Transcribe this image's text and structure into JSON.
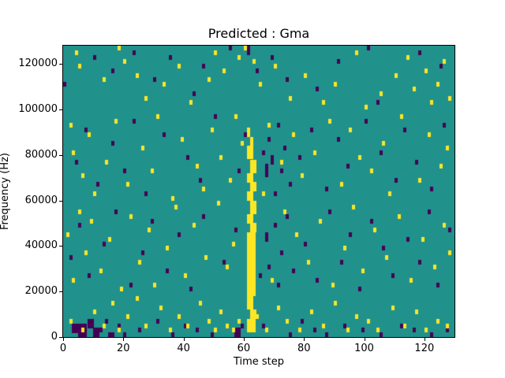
{
  "figure": {
    "title": "Predicted : Gma",
    "xlabel": "Time step",
    "ylabel": "Frequency (Hz)"
  },
  "chart_data": {
    "type": "heatmap",
    "title": "Predicted : Gma",
    "xlabel": "Time step",
    "ylabel": "Frequency (Hz)",
    "xlim": [
      0,
      130
    ],
    "ylim": [
      0,
      128000
    ],
    "x_ticks": [
      0,
      20,
      40,
      60,
      80,
      100,
      120
    ],
    "x_tick_labels": [
      "0",
      "20",
      "40",
      "60",
      "80",
      "100",
      "120"
    ],
    "y_ticks": [
      0,
      20000,
      40000,
      60000,
      80000,
      100000,
      120000
    ],
    "y_tick_labels": [
      "0",
      "20000",
      "40000",
      "60000",
      "80000",
      "100000",
      "120000"
    ],
    "grid": false,
    "legend": "none",
    "cell_unit": {
      "time": 1,
      "freq_hz": 2000
    },
    "colors": {
      "background_mid": "#21918c",
      "low": "#440154",
      "high": "#fde725"
    },
    "cells_format": "[time_step, freq_bin_of_2000Hz, width_steps_optional, height_bins_optional]",
    "yellow_cells": [
      [
        61,
        1,
        3,
        3
      ],
      [
        62,
        4,
        2,
        2
      ],
      [
        61,
        6,
        2,
        3
      ],
      [
        61,
        9,
        3,
        4
      ],
      [
        61,
        13,
        3,
        6
      ],
      [
        61,
        19,
        3,
        4
      ],
      [
        62,
        23,
        2,
        2
      ],
      [
        61,
        25,
        2,
        2
      ],
      [
        62,
        27,
        2,
        3
      ],
      [
        61,
        30,
        2,
        2
      ],
      [
        62,
        32,
        2,
        2
      ],
      [
        61,
        34,
        2,
        2
      ],
      [
        62,
        36,
        2,
        3
      ],
      [
        61,
        39,
        2,
        3
      ],
      [
        62,
        42,
        1,
        2
      ],
      [
        61,
        44,
        1,
        2
      ],
      [
        4,
        62
      ],
      [
        5,
        59
      ],
      [
        13,
        56
      ],
      [
        18,
        63
      ],
      [
        20,
        60
      ],
      [
        24,
        57
      ],
      [
        27,
        52
      ],
      [
        33,
        55
      ],
      [
        38,
        59
      ],
      [
        42,
        51
      ],
      [
        48,
        56
      ],
      [
        50,
        62
      ],
      [
        53,
        58
      ],
      [
        58,
        61
      ],
      [
        60,
        63
      ],
      [
        63,
        60
      ],
      [
        65,
        55
      ],
      [
        70,
        59
      ],
      [
        75,
        52
      ],
      [
        80,
        57
      ],
      [
        86,
        51
      ],
      [
        90,
        55
      ],
      [
        97,
        62
      ],
      [
        100,
        50
      ],
      [
        105,
        53
      ],
      [
        110,
        57
      ],
      [
        114,
        61
      ],
      [
        116,
        54
      ],
      [
        120,
        58
      ],
      [
        122,
        51
      ],
      [
        124,
        55
      ],
      [
        126,
        60
      ],
      [
        128,
        52
      ],
      [
        2,
        46
      ],
      [
        3,
        40
      ],
      [
        6,
        35
      ],
      [
        8,
        44
      ],
      [
        10,
        31
      ],
      [
        14,
        38
      ],
      [
        17,
        47
      ],
      [
        21,
        33
      ],
      [
        26,
        41
      ],
      [
        29,
        36
      ],
      [
        31,
        48
      ],
      [
        36,
        30
      ],
      [
        39,
        43
      ],
      [
        44,
        37
      ],
      [
        46,
        32
      ],
      [
        49,
        45
      ],
      [
        52,
        39
      ],
      [
        55,
        34
      ],
      [
        57,
        48
      ],
      [
        59,
        42
      ],
      [
        66,
        31
      ],
      [
        68,
        46
      ],
      [
        72,
        38
      ],
      [
        76,
        44
      ],
      [
        79,
        35
      ],
      [
        83,
        40
      ],
      [
        88,
        47
      ],
      [
        92,
        33
      ],
      [
        95,
        45
      ],
      [
        98,
        39
      ],
      [
        102,
        36
      ],
      [
        106,
        42
      ],
      [
        108,
        31
      ],
      [
        112,
        48
      ],
      [
        118,
        34
      ],
      [
        121,
        44
      ],
      [
        125,
        37
      ],
      [
        127,
        41
      ],
      [
        1,
        22
      ],
      [
        3,
        12
      ],
      [
        5,
        27
      ],
      [
        7,
        18
      ],
      [
        9,
        25
      ],
      [
        12,
        14
      ],
      [
        15,
        21
      ],
      [
        19,
        10
      ],
      [
        22,
        26
      ],
      [
        25,
        16
      ],
      [
        28,
        23
      ],
      [
        30,
        11
      ],
      [
        34,
        19
      ],
      [
        37,
        28
      ],
      [
        40,
        13
      ],
      [
        43,
        24
      ],
      [
        47,
        17
      ],
      [
        51,
        29
      ],
      [
        54,
        15
      ],
      [
        56,
        20
      ],
      [
        69,
        12
      ],
      [
        73,
        27
      ],
      [
        77,
        22
      ],
      [
        81,
        16
      ],
      [
        85,
        25
      ],
      [
        89,
        11
      ],
      [
        93,
        19
      ],
      [
        96,
        28
      ],
      [
        99,
        14
      ],
      [
        103,
        23
      ],
      [
        107,
        17
      ],
      [
        111,
        26
      ],
      [
        115,
        12
      ],
      [
        119,
        21
      ],
      [
        123,
        15
      ],
      [
        126,
        24
      ],
      [
        128,
        18
      ],
      [
        2,
        3
      ],
      [
        6,
        1
      ],
      [
        10,
        5
      ],
      [
        13,
        2
      ],
      [
        16,
        7
      ],
      [
        18,
        1
      ],
      [
        21,
        4
      ],
      [
        24,
        8
      ],
      [
        27,
        2
      ],
      [
        32,
        6
      ],
      [
        35,
        1
      ],
      [
        38,
        4
      ],
      [
        41,
        2
      ],
      [
        45,
        7
      ],
      [
        48,
        3
      ],
      [
        50,
        1
      ],
      [
        52,
        5
      ],
      [
        54,
        2
      ],
      [
        56,
        1
      ],
      [
        58,
        3
      ],
      [
        64,
        4
      ],
      [
        67,
        1
      ],
      [
        71,
        6
      ],
      [
        74,
        3
      ],
      [
        78,
        1
      ],
      [
        82,
        5
      ],
      [
        86,
        2
      ],
      [
        90,
        7
      ],
      [
        94,
        1
      ],
      [
        97,
        4
      ],
      [
        101,
        3
      ],
      [
        104,
        1
      ],
      [
        109,
        6
      ],
      [
        113,
        2
      ],
      [
        117,
        5
      ],
      [
        120,
        1
      ],
      [
        124,
        3
      ],
      [
        127,
        2
      ]
    ],
    "purple_cells": [
      [
        0,
        55
      ],
      [
        10,
        61
      ],
      [
        16,
        58
      ],
      [
        23,
        62
      ],
      [
        30,
        56
      ],
      [
        35,
        61
      ],
      [
        43,
        53
      ],
      [
        46,
        59
      ],
      [
        55,
        63
      ],
      [
        61,
        62,
        1,
        2
      ],
      [
        64,
        58
      ],
      [
        69,
        61
      ],
      [
        74,
        56
      ],
      [
        84,
        54
      ],
      [
        91,
        60
      ],
      [
        101,
        63
      ],
      [
        104,
        51
      ],
      [
        118,
        62
      ],
      [
        125,
        59
      ],
      [
        4,
        38
      ],
      [
        7,
        45
      ],
      [
        11,
        33
      ],
      [
        16,
        42
      ],
      [
        20,
        36
      ],
      [
        23,
        47
      ],
      [
        27,
        31
      ],
      [
        33,
        44
      ],
      [
        41,
        39
      ],
      [
        45,
        34
      ],
      [
        50,
        48
      ],
      [
        58,
        36
      ],
      [
        60,
        44
      ],
      [
        66,
        40
      ],
      [
        67,
        35,
        1,
        3
      ],
      [
        68,
        43
      ],
      [
        69,
        38,
        1,
        2
      ],
      [
        70,
        31
      ],
      [
        71,
        46
      ],
      [
        72,
        36
      ],
      [
        73,
        41
      ],
      [
        75,
        33
      ],
      [
        78,
        39
      ],
      [
        82,
        45
      ],
      [
        87,
        32
      ],
      [
        91,
        43
      ],
      [
        94,
        37
      ],
      [
        100,
        47
      ],
      [
        105,
        40
      ],
      [
        110,
        34
      ],
      [
        113,
        45
      ],
      [
        117,
        38
      ],
      [
        122,
        32
      ],
      [
        126,
        46
      ],
      [
        2,
        17
      ],
      [
        5,
        24
      ],
      [
        8,
        13
      ],
      [
        13,
        20
      ],
      [
        17,
        27
      ],
      [
        22,
        11
      ],
      [
        26,
        18
      ],
      [
        29,
        25
      ],
      [
        34,
        14
      ],
      [
        38,
        22
      ],
      [
        42,
        10
      ],
      [
        46,
        26
      ],
      [
        53,
        16
      ],
      [
        57,
        23
      ],
      [
        63,
        19
      ],
      [
        65,
        13
      ],
      [
        67,
        21,
        1,
        2
      ],
      [
        68,
        15
      ],
      [
        70,
        24
      ],
      [
        71,
        11
      ],
      [
        72,
        18
      ],
      [
        74,
        26
      ],
      [
        76,
        14
      ],
      [
        80,
        20
      ],
      [
        84,
        12
      ],
      [
        88,
        27
      ],
      [
        92,
        16
      ],
      [
        95,
        22
      ],
      [
        98,
        10
      ],
      [
        102,
        25
      ],
      [
        106,
        19
      ],
      [
        109,
        13
      ],
      [
        114,
        21
      ],
      [
        118,
        16
      ],
      [
        121,
        27
      ],
      [
        124,
        11
      ],
      [
        128,
        23
      ],
      [
        3,
        1,
        2,
        2
      ],
      [
        5,
        0,
        3,
        3
      ],
      [
        8,
        2,
        2,
        2
      ],
      [
        10,
        0,
        2,
        2
      ],
      [
        12,
        1
      ],
      [
        14,
        3
      ],
      [
        15,
        0,
        2,
        1
      ],
      [
        18,
        2
      ],
      [
        20,
        0
      ],
      [
        25,
        1
      ],
      [
        31,
        3
      ],
      [
        36,
        0
      ],
      [
        40,
        2
      ],
      [
        44,
        1
      ],
      [
        49,
        0
      ],
      [
        57,
        0,
        2,
        2
      ],
      [
        59,
        2
      ],
      [
        66,
        2
      ],
      [
        75,
        0
      ],
      [
        79,
        3
      ],
      [
        83,
        1
      ],
      [
        87,
        0
      ],
      [
        93,
        2
      ],
      [
        99,
        1
      ],
      [
        105,
        0
      ],
      [
        112,
        2
      ],
      [
        116,
        1
      ],
      [
        122,
        0
      ],
      [
        127,
        1
      ]
    ]
  }
}
